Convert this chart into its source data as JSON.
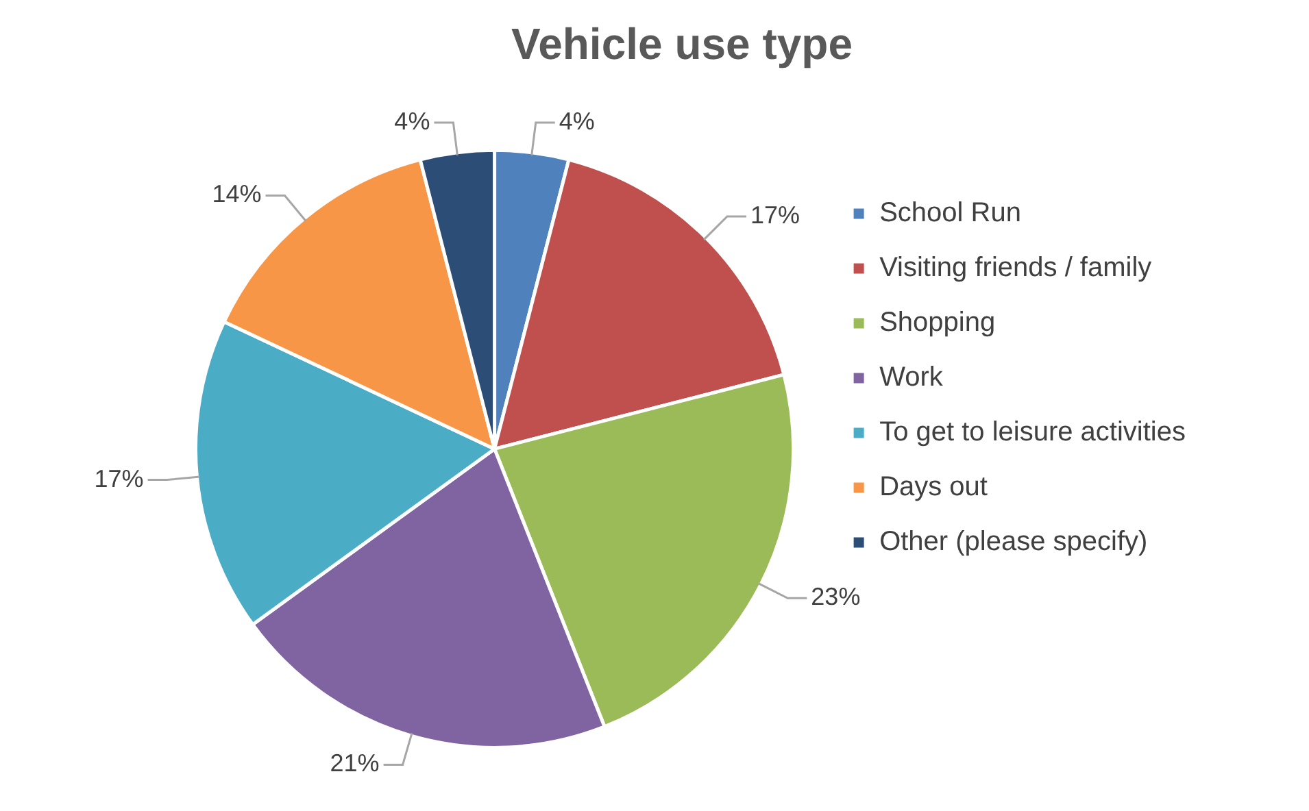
{
  "chart_data": {
    "type": "pie",
    "title": "Vehicle use type",
    "categories": [
      "School Run",
      "Visiting friends / family",
      "Shopping",
      "Work",
      "To get to leisure activities",
      "Days out",
      "Other (please specify)"
    ],
    "values": [
      4,
      17,
      23,
      21,
      17,
      14,
      4
    ],
    "colors": [
      "#4f81bd",
      "#c0504d",
      "#9bbb59",
      "#8064a2",
      "#4bacc6",
      "#f79646",
      "#2c4d75"
    ],
    "value_labels": [
      "4%",
      "17%",
      "23%",
      "21%",
      "17%",
      "14%",
      "4%"
    ],
    "legend": "right"
  }
}
